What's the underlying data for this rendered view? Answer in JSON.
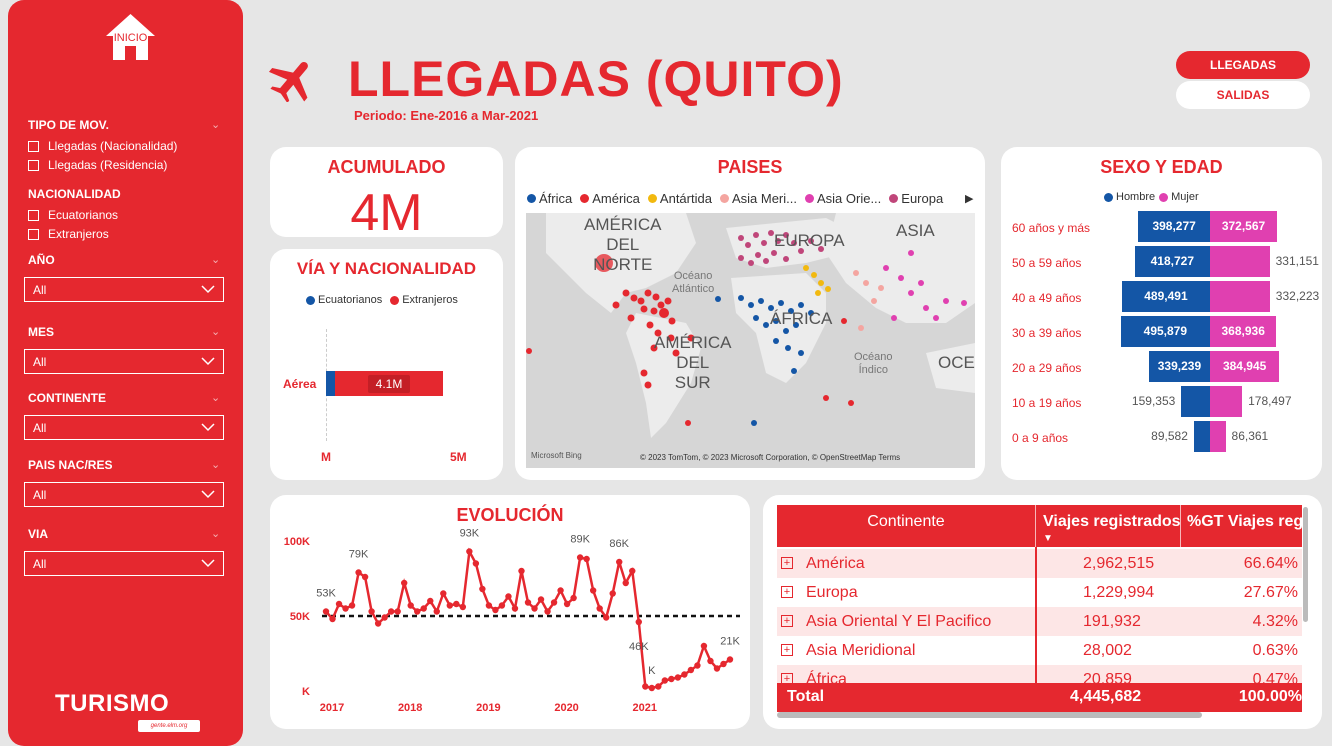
{
  "sidebar": {
    "home_label": "INICIO",
    "tipo_mov": {
      "title": "TIPO DE MOV.",
      "options": [
        "Llegadas (Nacionalidad)",
        "Llegadas (Residencia)"
      ]
    },
    "nacionalidad": {
      "title": "NACIONALIDAD",
      "options": [
        "Ecuatorianos",
        "Extranjeros"
      ]
    },
    "filters": [
      {
        "title": "AÑO",
        "value": "All"
      },
      {
        "title": "MES",
        "value": "All"
      },
      {
        "title": "CONTINENTE",
        "value": "All"
      },
      {
        "title": "PAIS NAC/RES",
        "value": "All"
      },
      {
        "title": "VIA",
        "value": "All"
      }
    ],
    "logo": "TURISMO",
    "logo_sub": "gente.elm.org"
  },
  "header": {
    "title": "LLEGADAS (QUITO)",
    "period": "Periodo: Ene-2016 a Mar-2021",
    "btn_llegadas": "LLEGADAS",
    "btn_salidas": "SALIDAS"
  },
  "acumulado": {
    "title": "ACUMULADO",
    "value": "4M"
  },
  "via": {
    "title": "VÍA Y NACIONALIDAD",
    "legend": [
      "Ecuatorianos",
      "Extranjeros"
    ],
    "category": "Aérea",
    "bar_label": "4.1M",
    "axis_min": "M",
    "axis_max": "5M",
    "colors": {
      "ecuatorianos": "#1456a6",
      "extranjeros": "#e5282f"
    }
  },
  "paises": {
    "title": "PAISES",
    "legend": [
      {
        "name": "África",
        "color": "#1456a6"
      },
      {
        "name": "América",
        "color": "#e5282f"
      },
      {
        "name": "Antártida",
        "color": "#f2b90f"
      },
      {
        "name": "Asia Meri...",
        "color": "#f4a5a0"
      },
      {
        "name": "Asia Orie...",
        "color": "#e040b0"
      },
      {
        "name": "Europa",
        "color": "#c0467a"
      }
    ],
    "map_labels": [
      "AMÉRICA",
      "DEL",
      "NORTE",
      "EUROPA",
      "ASIA",
      "Océano",
      "Atlántico",
      "ÁFRICA",
      "AMÉRICA",
      "DEL",
      "SUR",
      "Océano",
      "Índico",
      "OCE"
    ],
    "attribution": "© 2023 TomTom, © 2023 Microsoft Corporation, © OpenStreetMap  Terms",
    "bing": "Microsoft Bing"
  },
  "sexo": {
    "title": "SEXO Y EDAD",
    "legend": [
      "Hombre",
      "Mujer"
    ],
    "colors": {
      "hombre": "#1456a6",
      "mujer": "#e040b0"
    },
    "rows": [
      {
        "age": "60 años y más",
        "hombre_label": "398,277",
        "mujer_label": "372,567"
      },
      {
        "age": "50 a 59 años",
        "hombre_label": "418,727",
        "mujer_label": "331,151"
      },
      {
        "age": "40 a 49 años",
        "hombre_label": "489,491",
        "mujer_label": "332,223"
      },
      {
        "age": "30 a 39 años",
        "hombre_label": "495,879",
        "mujer_label": "368,936"
      },
      {
        "age": "20 a 29 años",
        "hombre_label": "339,239",
        "mujer_label": "384,945"
      },
      {
        "age": "10 a 19 años",
        "hombre_label": "159,353",
        "mujer_label": "178,497"
      },
      {
        "age": "0 a 9 años",
        "hombre_label": "89,582",
        "mujer_label": "86,361"
      }
    ]
  },
  "evolucion": {
    "title": "EVOLUCIÓN",
    "y_ticks": [
      "100K",
      "50K",
      "K"
    ],
    "x_ticks": [
      "2017",
      "2018",
      "2019",
      "2020",
      "2021"
    ],
    "annotations": [
      "53K",
      "79K",
      "93K",
      "89K",
      "86K",
      "46K",
      "K",
      "21K"
    ]
  },
  "table": {
    "headers": [
      "Continente",
      "Viajes registrados",
      "%GT Viajes regi"
    ],
    "rows": [
      {
        "continent": "América",
        "viajes": "2,962,515",
        "pct": "66.64%"
      },
      {
        "continent": "Europa",
        "viajes": "1,229,994",
        "pct": "27.67%"
      },
      {
        "continent": "Asia Oriental Y El Pacifico",
        "viajes": "191,932",
        "pct": "4.32%"
      },
      {
        "continent": "Asia Meridional",
        "viajes": "28,002",
        "pct": "0.63%"
      },
      {
        "continent": "África",
        "viajes": "20,859",
        "pct": "0.47%"
      }
    ],
    "total": {
      "label": "Total",
      "viajes": "4,445,682",
      "pct": "100.00%"
    }
  },
  "chart_data": [
    {
      "type": "bar",
      "title": "SEXO Y EDAD",
      "categories": [
        "60 años y más",
        "50 a 59 años",
        "40 a 49 años",
        "30 a 39 años",
        "20 a 29 años",
        "10 a 19 años",
        "0 a 9 años"
      ],
      "series": [
        {
          "name": "Hombre",
          "values": [
            398277,
            418727,
            489491,
            495879,
            339239,
            159353,
            89582
          ]
        },
        {
          "name": "Mujer",
          "values": [
            372567,
            331151,
            332223,
            368936,
            384945,
            178497,
            86361
          ]
        }
      ]
    },
    {
      "type": "bar",
      "title": "VÍA Y NACIONALIDAD",
      "categories": [
        "Aérea"
      ],
      "series": [
        {
          "name": "Ecuatorianos",
          "values": [
            0.1
          ]
        },
        {
          "name": "Extranjeros",
          "values": [
            4.0
          ]
        }
      ],
      "xlim": [
        0,
        5
      ]
    },
    {
      "type": "line",
      "title": "EVOLUCIÓN",
      "ylim": [
        0,
        100
      ],
      "reference_line": 50,
      "x": [
        "2016-01",
        "2016-02",
        "2016-03",
        "2016-04",
        "2016-05",
        "2016-06",
        "2016-07",
        "2016-08",
        "2016-09",
        "2016-10",
        "2016-11",
        "2016-12",
        "2017-01",
        "2017-02",
        "2017-03",
        "2017-04",
        "2017-05",
        "2017-06",
        "2017-07",
        "2017-08",
        "2017-09",
        "2017-10",
        "2017-11",
        "2017-12",
        "2018-01",
        "2018-02",
        "2018-03",
        "2018-04",
        "2018-05",
        "2018-06",
        "2018-07",
        "2018-08",
        "2018-09",
        "2018-10",
        "2018-11",
        "2018-12",
        "2019-01",
        "2019-02",
        "2019-03",
        "2019-04",
        "2019-05",
        "2019-06",
        "2019-07",
        "2019-08",
        "2019-09",
        "2019-10",
        "2019-11",
        "2019-12",
        "2020-01",
        "2020-02",
        "2020-03",
        "2020-04",
        "2020-05",
        "2020-06",
        "2020-07",
        "2020-08",
        "2020-09",
        "2020-10",
        "2020-11",
        "2020-12",
        "2021-01",
        "2021-02",
        "2021-03"
      ],
      "values": [
        53,
        48,
        58,
        55,
        57,
        79,
        76,
        53,
        45,
        49,
        53,
        53,
        72,
        57,
        53,
        55,
        60,
        53,
        65,
        57,
        58,
        56,
        93,
        85,
        68,
        57,
        54,
        57,
        63,
        55,
        80,
        59,
        55,
        61,
        53,
        59,
        67,
        58,
        62,
        89,
        88,
        67,
        55,
        49,
        65,
        86,
        72,
        80,
        46,
        3,
        2,
        3,
        7,
        8,
        9,
        11,
        14,
        17,
        30,
        20,
        15,
        18,
        21
      ]
    }
  ]
}
